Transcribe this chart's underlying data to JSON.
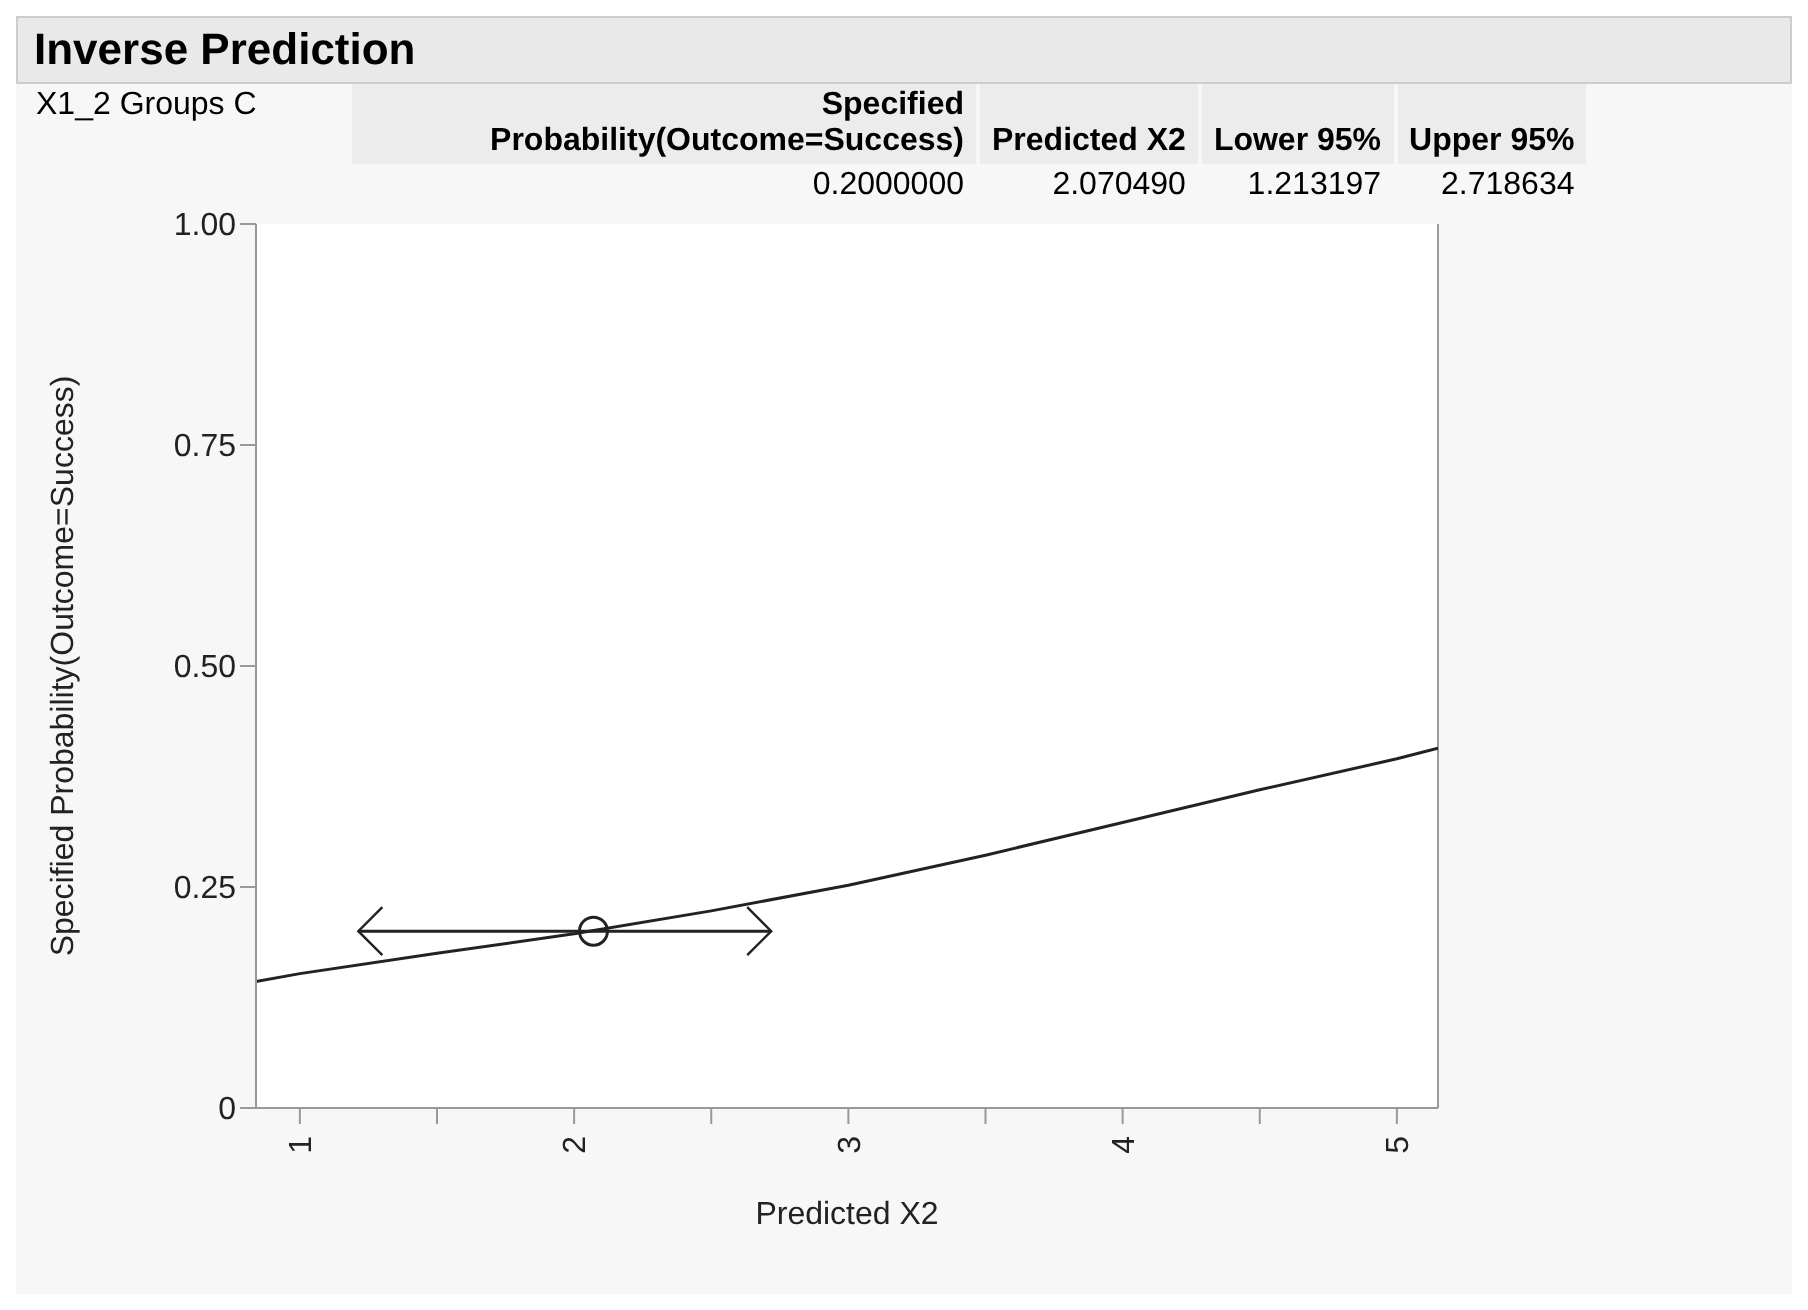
{
  "chart_data": {
    "type": "line",
    "title": "Inverse Prediction",
    "annotations": [
      "X1_2 Groups C",
      "Specified Probability(Outcome=Success)",
      "Predicted X2",
      "Lower 95%",
      "Upper 95%",
      "0.2000000",
      "2.070490",
      "1.213197",
      "2.718634"
    ],
    "xlabel": "Predicted X2",
    "ylabel": "Specified Probability(Outcome=Success)",
    "series": [
      {
        "color": "#222222",
        "marker": "none",
        "x": [
          0.84,
          1,
          1.5,
          2,
          2.5,
          3,
          3.5,
          4,
          4.5,
          5,
          5.15
        ],
        "values": [
          0.143,
          0.152,
          0.175,
          0.197,
          0.223,
          0.252,
          0.286,
          0.323,
          0.36,
          0.395,
          0.407
        ]
      },
      {
        "type": "scatter",
        "color": "#222222",
        "marker": "circle",
        "x": [
          2.07049
        ],
        "values": [
          0.2
        ],
        "xerrors": [
          [
            1.213197,
            2.718634
          ]
        ]
      }
    ],
    "xlim": [
      0.84,
      5.15
    ],
    "xticks": [
      1,
      {
        "value": 1.5,
        "label": null
      },
      2,
      {
        "value": 2.5,
        "label": null
      },
      3,
      {
        "value": 3.5,
        "label": null
      },
      4,
      {
        "value": 4.5,
        "label": null
      },
      5
    ],
    "ylim": [
      0,
      1
    ],
    "yticks": [
      0,
      0.25,
      {
        "value": 0.5,
        "label": "0.50"
      },
      0.75,
      {
        "value": 1,
        "label": "1.00"
      }
    ],
    "grid": false,
    "legend": false
  }
}
